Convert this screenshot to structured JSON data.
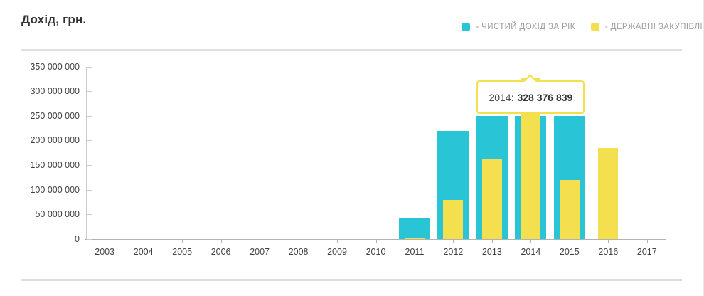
{
  "chart_data": {
    "type": "bar",
    "title": "Дохід, грн.",
    "categories": [
      "2003",
      "2004",
      "2005",
      "2006",
      "2007",
      "2008",
      "2009",
      "2010",
      "2011",
      "2012",
      "2013",
      "2014",
      "2015",
      "2016",
      "2017"
    ],
    "series": [
      {
        "name": "ЧИСТИЙ ДОХІД ЗА РІК",
        "color": "#29c4d6",
        "values": [
          null,
          null,
          null,
          null,
          null,
          null,
          null,
          null,
          42000000,
          220000000,
          250000000,
          250000000,
          250000000,
          null,
          null
        ]
      },
      {
        "name": "ДЕРЖАВНІ ЗАКУПІВЛІ",
        "color": "#f4df4e",
        "values": [
          null,
          null,
          null,
          null,
          null,
          null,
          null,
          null,
          3000000,
          80000000,
          163000000,
          328376839,
          120000000,
          185000000,
          null
        ]
      }
    ],
    "legend": [
      {
        "label": "- ЧИСТИЙ ДОХІД ЗА РІК",
        "color": "#29c4d6"
      },
      {
        "label": "- ДЕРЖАВНІ ЗАКУПІВЛІ",
        "color": "#f4df4e"
      }
    ],
    "legend_position": "top-right",
    "xlabel": "",
    "ylabel": "",
    "ylim": [
      0,
      350000000
    ],
    "ytick_step": 50000000,
    "ytick_labels": [
      "0",
      "50 000 000",
      "100 000 000",
      "150 000 000",
      "200 000 000",
      "250 000 000",
      "300 000 000",
      "350 000 000"
    ],
    "grid": false,
    "tooltip": {
      "category": "2014",
      "series": "ДЕРЖАВНІ ЗАКУПІВЛІ",
      "label": "2014:",
      "value": 328376839,
      "value_text": "328 376 839"
    }
  },
  "colors": {
    "title_text": "#333333",
    "axis_text": "#404040",
    "legend_text": "#9e9e9e",
    "y_axis_line": "#cccccc",
    "x_axis_line": "#b3b3b3",
    "divider": "#e0e0e0",
    "divider_bottom": "#dcdcdc",
    "tooltip_border": "#f4df4e",
    "tooltip_bg": "#ffffff"
  }
}
